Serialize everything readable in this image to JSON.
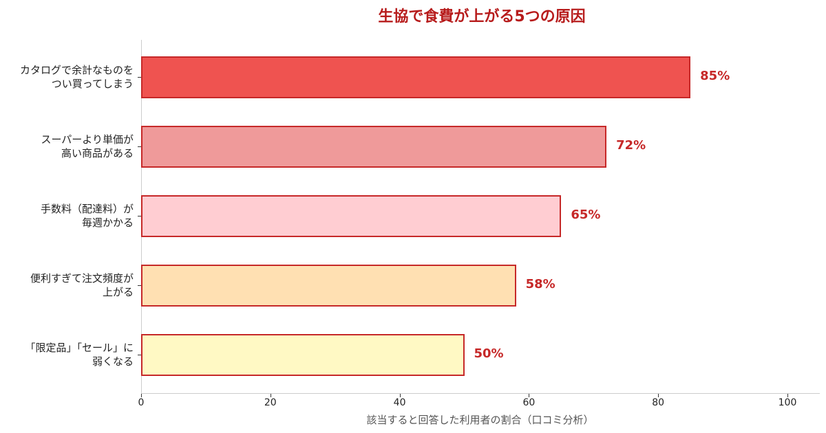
{
  "chart_data": {
    "type": "bar",
    "orientation": "horizontal",
    "title": "生協で食費が上がる5つの原因",
    "xlabel": "該当すると回答した利用者の割合（口コミ分析）",
    "ylabel": "",
    "xlim": [
      0,
      105
    ],
    "xticks": [
      0,
      20,
      40,
      60,
      80,
      100
    ],
    "xtick_labels": [
      "0",
      "20",
      "40",
      "60",
      "80",
      "100"
    ],
    "grid": false,
    "legend": null,
    "categories": [
      "カタログで余計なものを\nつい買ってしまう",
      "スーパーより単価が\n高い商品がある",
      "手数料（配達料）が\n毎週かかる",
      "便利すぎて注文頻度が\n上がる",
      "「限定品」「セール」に\n弱くなる"
    ],
    "values": [
      85,
      72,
      65,
      58,
      50
    ],
    "value_labels": [
      "85%",
      "72%",
      "65%",
      "58%",
      "50%"
    ],
    "bar_colors": [
      "#ef5350",
      "#ef9a9a",
      "#ffcdd2",
      "#ffe0b2",
      "#fff9c4"
    ],
    "edge_color": "#c62828",
    "label_color": "#c62828",
    "title_color": "#b71c1c"
  },
  "bars": [
    {
      "line1": "カタログで余計なものを",
      "line2": "つい買ってしまう",
      "value": 85,
      "label": "85%",
      "color": "#ef5350"
    },
    {
      "line1": "スーパーより単価が",
      "line2": "高い商品がある",
      "value": 72,
      "label": "72%",
      "color": "#ef9a9a"
    },
    {
      "line1": "手数料（配達料）が",
      "line2": "毎週かかる",
      "value": 65,
      "label": "65%",
      "color": "#ffcdd2"
    },
    {
      "line1": "便利すぎて注文頻度が",
      "line2": "上がる",
      "value": 58,
      "label": "58%",
      "color": "#ffe0b2"
    },
    {
      "line1": "「限定品」「セール」に",
      "line2": "弱くなる",
      "value": 50,
      "label": "50%",
      "color": "#fff9c4"
    }
  ],
  "ticks": [
    "0",
    "20",
    "40",
    "60",
    "80",
    "100"
  ]
}
